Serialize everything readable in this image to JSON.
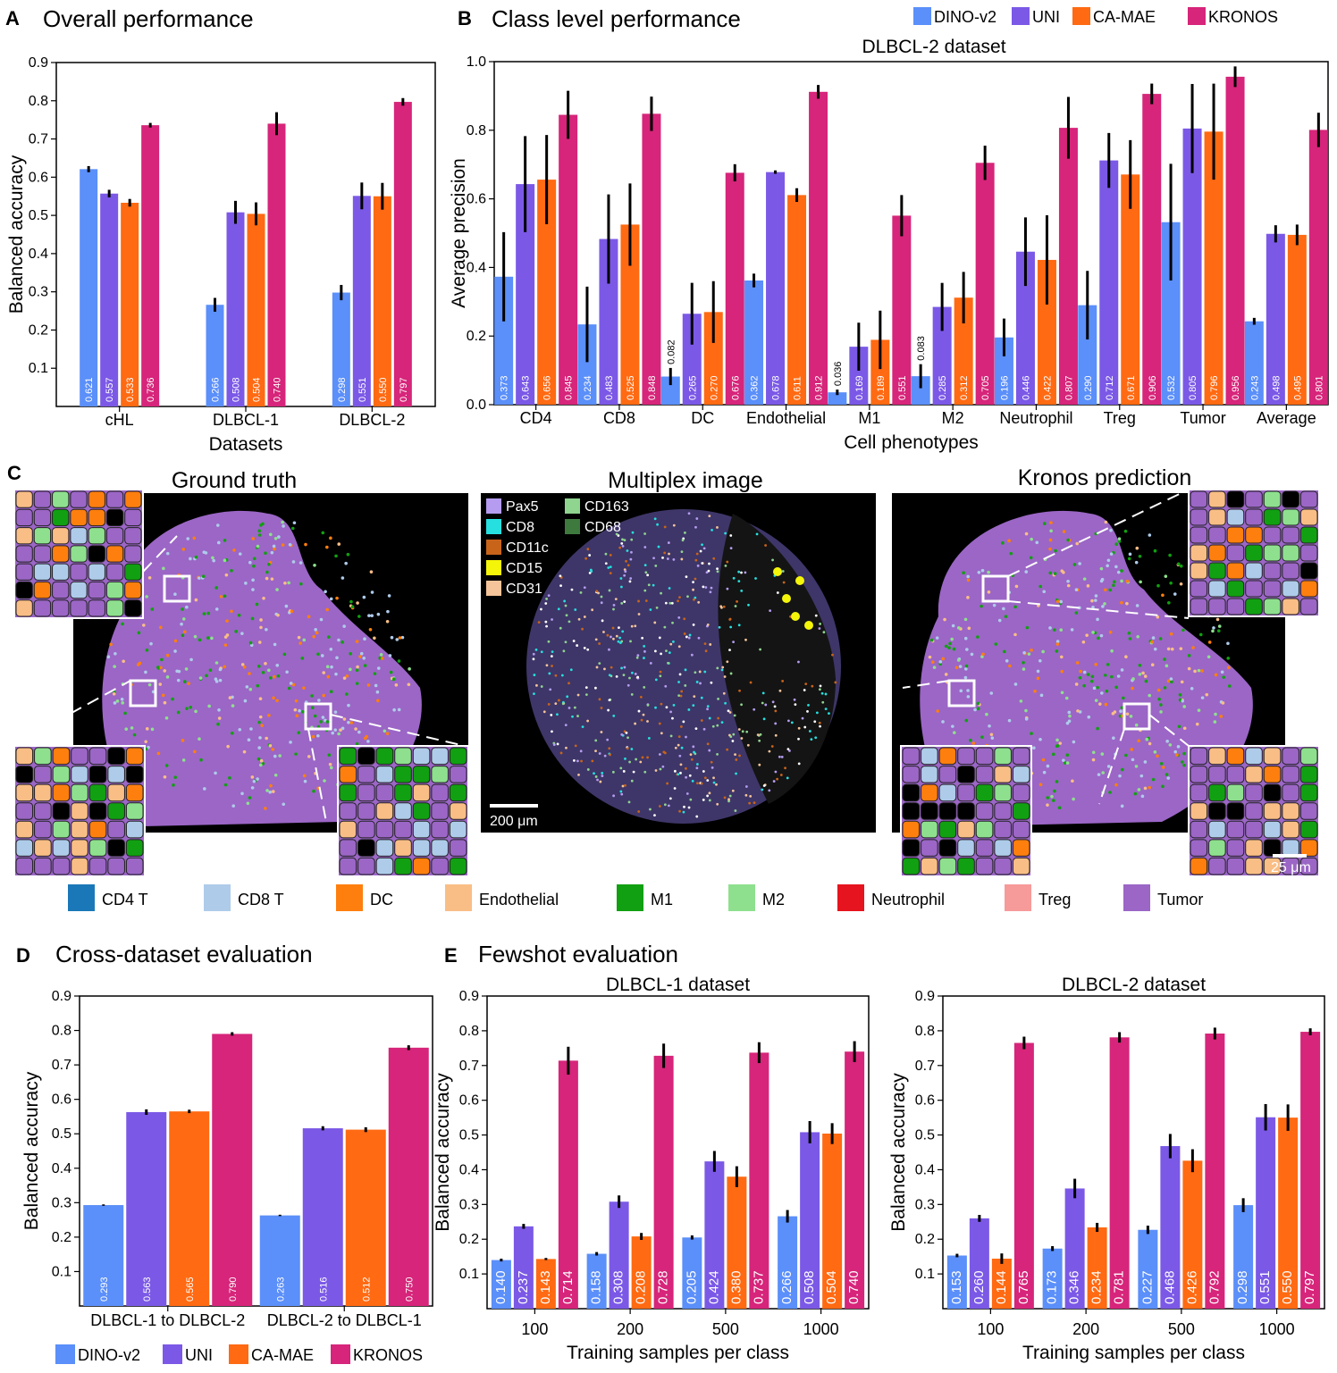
{
  "colors": {
    "DINO-v2": "#5b8ff9",
    "UNI": "#7b59e6",
    "CA-MAE": "#ff6a12",
    "KRONOS": "#d6257a"
  },
  "legend": [
    "DINO-v2",
    "UNI",
    "CA-MAE",
    "KRONOS"
  ],
  "panels": {
    "A": {
      "label": "A",
      "title": "Overall performance"
    },
    "B": {
      "label": "B",
      "title": "Class level performance",
      "subtitle": "DLBCL-2 dataset"
    },
    "C": {
      "label": "C",
      "titles": [
        "Ground truth",
        "Multiplex image",
        "Kronos prediction"
      ],
      "marker_legend": [
        {
          "name": "Pax5",
          "color": "#b59cf0"
        },
        {
          "name": "CD8",
          "color": "#26e0e0"
        },
        {
          "name": "CD11c",
          "color": "#c8641a"
        },
        {
          "name": "CD15",
          "color": "#f5f50a"
        },
        {
          "name": "CD31",
          "color": "#f5c49a"
        },
        {
          "name": "CD163",
          "color": "#8fd48f"
        },
        {
          "name": "CD68",
          "color": "#3e7a3e"
        }
      ],
      "scale_main": "200 μm",
      "scale_inset": "25 μm",
      "class_legend": [
        {
          "name": "CD4 T",
          "color": "#1a78b8"
        },
        {
          "name": "CD8 T",
          "color": "#aecbea"
        },
        {
          "name": "DC",
          "color": "#ff7f0e"
        },
        {
          "name": "Endothelial",
          "color": "#f9be86"
        },
        {
          "name": "M1",
          "color": "#11a011"
        },
        {
          "name": "M2",
          "color": "#8ee08e"
        },
        {
          "name": "Neutrophil",
          "color": "#e6141e"
        },
        {
          "name": "Treg",
          "color": "#f79a9a"
        },
        {
          "name": "Tumor",
          "color": "#9b66c6"
        }
      ]
    },
    "D": {
      "label": "D",
      "title": "Cross-dataset evaluation"
    },
    "E": {
      "label": "E",
      "title": "Fewshot evaluation"
    }
  },
  "chart_data": [
    {
      "id": "A",
      "type": "bar",
      "title": "",
      "xlabel": "Datasets",
      "ylabel": "Balanced accuracy",
      "ylim": [
        0,
        0.9
      ],
      "yticks": [
        "0.1",
        "0.2",
        "0.3",
        "0.4",
        "0.5",
        "0.6",
        "0.7",
        "0.8",
        "0.9"
      ],
      "categories": [
        "cHL",
        "DLBCL-1",
        "DLBCL-2"
      ],
      "series": [
        {
          "name": "DINO-v2",
          "values": [
            0.621,
            0.266,
            0.298
          ],
          "err": [
            0.008,
            0.018,
            0.02
          ],
          "labels": [
            "0.621",
            "0.266",
            "0.298"
          ]
        },
        {
          "name": "UNI",
          "values": [
            0.557,
            0.508,
            0.551
          ],
          "err": [
            0.01,
            0.03,
            0.035
          ],
          "labels": [
            "0.557",
            "0.508",
            "0.551"
          ]
        },
        {
          "name": "CA-MAE",
          "values": [
            0.533,
            0.504,
            0.55
          ],
          "err": [
            0.01,
            0.03,
            0.035
          ],
          "labels": [
            "0.533",
            "0.504",
            "0.550"
          ]
        },
        {
          "name": "KRONOS",
          "values": [
            0.736,
            0.74,
            0.797
          ],
          "err": [
            0.006,
            0.03,
            0.01
          ],
          "labels": [
            "0.736",
            "0.740",
            "0.797"
          ]
        }
      ]
    },
    {
      "id": "B",
      "type": "bar",
      "title": "DLBCL-2 dataset",
      "xlabel": "Cell phenotypes",
      "ylabel": "Average precision",
      "ylim": [
        0,
        1.0
      ],
      "yticks": [
        "0.0",
        "0.2",
        "0.4",
        "0.6",
        "0.8",
        "1.0"
      ],
      "categories": [
        "CD4",
        "CD8",
        "DC",
        "Endothelial",
        "M1",
        "M2",
        "Neutrophil",
        "Treg",
        "Tumor",
        "Average"
      ],
      "series": [
        {
          "name": "DINO-v2",
          "values": [
            0.373,
            0.234,
            0.082,
            0.362,
            0.036,
            0.083,
            0.196,
            0.29,
            0.532,
            0.243
          ],
          "err": [
            0.13,
            0.11,
            0.025,
            0.02,
            0.008,
            0.035,
            0.055,
            0.1,
            0.17,
            0.01
          ],
          "labels": [
            "0.373",
            "0.234",
            "0.082",
            "0.362",
            "0.036",
            "0.083",
            "0.196",
            "0.290",
            "0.532",
            "0.243"
          ]
        },
        {
          "name": "UNI",
          "values": [
            0.643,
            0.483,
            0.265,
            0.678,
            0.169,
            0.285,
            0.446,
            0.712,
            0.805,
            0.498
          ],
          "err": [
            0.14,
            0.13,
            0.09,
            0.005,
            0.07,
            0.07,
            0.1,
            0.08,
            0.13,
            0.025
          ],
          "labels": [
            "0.643",
            "0.483",
            "0.265",
            "0.678",
            "0.169",
            "0.285",
            "0.446",
            "0.712",
            "0.805",
            "0.498"
          ]
        },
        {
          "name": "CA-MAE",
          "values": [
            0.656,
            0.525,
            0.27,
            0.611,
            0.189,
            0.312,
            0.422,
            0.671,
            0.796,
            0.495
          ],
          "err": [
            0.13,
            0.12,
            0.09,
            0.02,
            0.085,
            0.075,
            0.13,
            0.1,
            0.14,
            0.03
          ],
          "labels": [
            "0.656",
            "0.525",
            "0.270",
            "0.611",
            "0.189",
            "0.312",
            "0.422",
            "0.671",
            "0.796",
            "0.495"
          ]
        },
        {
          "name": "KRONOS",
          "values": [
            0.845,
            0.848,
            0.676,
            0.912,
            0.551,
            0.705,
            0.807,
            0.906,
            0.956,
            0.801
          ],
          "err": [
            0.07,
            0.05,
            0.025,
            0.02,
            0.06,
            0.05,
            0.09,
            0.03,
            0.03,
            0.05
          ],
          "labels": [
            "0.845",
            "0.848",
            "0.676",
            "0.912",
            "0.551",
            "0.705",
            "0.807",
            "0.906",
            "0.956",
            "0.801"
          ]
        }
      ]
    },
    {
      "id": "D",
      "type": "bar",
      "title": "",
      "xlabel": "",
      "ylabel": "Balanced accuracy",
      "ylim": [
        0,
        0.9
      ],
      "yticks": [
        "0.1",
        "0.2",
        "0.3",
        "0.4",
        "0.5",
        "0.6",
        "0.7",
        "0.8",
        "0.9"
      ],
      "categories": [
        "DLBCL-1 to DLBCL-2",
        "DLBCL-2 to DLBCL-1"
      ],
      "series": [
        {
          "name": "DINO-v2",
          "values": [
            0.293,
            0.263
          ],
          "err": [
            0.002,
            0.002
          ],
          "labels": [
            "0.293",
            "0.263"
          ]
        },
        {
          "name": "UNI",
          "values": [
            0.563,
            0.516
          ],
          "err": [
            0.008,
            0.006
          ],
          "labels": [
            "0.563",
            "0.516"
          ]
        },
        {
          "name": "CA-MAE",
          "values": [
            0.565,
            0.512
          ],
          "err": [
            0.005,
            0.007
          ],
          "labels": [
            "0.565",
            "0.512"
          ]
        },
        {
          "name": "KRONOS",
          "values": [
            0.79,
            0.75
          ],
          "err": [
            0.005,
            0.007
          ],
          "labels": [
            "0.790",
            "0.750"
          ]
        }
      ]
    },
    {
      "id": "E1",
      "type": "bar",
      "title": "DLBCL-1 dataset",
      "xlabel": "Training samples per class",
      "ylabel": "Balanced accuracy",
      "ylim": [
        0,
        0.9
      ],
      "yticks": [
        "0.1",
        "0.2",
        "0.3",
        "0.4",
        "0.5",
        "0.6",
        "0.7",
        "0.8",
        "0.9"
      ],
      "categories": [
        "100",
        "200",
        "500",
        "1000"
      ],
      "series": [
        {
          "name": "DINO-v2",
          "values": [
            0.14,
            0.158,
            0.205,
            0.266
          ],
          "err": [
            0.004,
            0.005,
            0.006,
            0.018
          ],
          "labels": [
            "0.140",
            "0.158",
            "0.205",
            "0.266"
          ]
        },
        {
          "name": "UNI",
          "values": [
            0.237,
            0.308,
            0.424,
            0.508
          ],
          "err": [
            0.007,
            0.018,
            0.03,
            0.032
          ],
          "labels": [
            "0.237",
            "0.308",
            "0.424",
            "0.508"
          ]
        },
        {
          "name": "CA-MAE",
          "values": [
            0.143,
            0.208,
            0.38,
            0.504
          ],
          "err": [
            0.003,
            0.01,
            0.03,
            0.03
          ],
          "labels": [
            "0.143",
            "0.208",
            "0.380",
            "0.504"
          ]
        },
        {
          "name": "KRONOS",
          "values": [
            0.714,
            0.728,
            0.737,
            0.74
          ],
          "err": [
            0.04,
            0.035,
            0.03,
            0.03
          ],
          "labels": [
            "0.714",
            "0.728",
            "0.737",
            "0.740"
          ]
        }
      ]
    },
    {
      "id": "E2",
      "type": "bar",
      "title": "DLBCL-2 dataset",
      "xlabel": "Training samples per class",
      "ylabel": "Balanced accuracy",
      "ylim": [
        0,
        0.9
      ],
      "yticks": [
        "0.1",
        "0.2",
        "0.3",
        "0.4",
        "0.5",
        "0.6",
        "0.7",
        "0.8",
        "0.9"
      ],
      "categories": [
        "100",
        "200",
        "500",
        "1000"
      ],
      "series": [
        {
          "name": "DINO-v2",
          "values": [
            0.153,
            0.173,
            0.227,
            0.298
          ],
          "err": [
            0.005,
            0.007,
            0.012,
            0.02
          ],
          "labels": [
            "0.153",
            "0.173",
            "0.227",
            "0.298"
          ]
        },
        {
          "name": "UNI",
          "values": [
            0.26,
            0.346,
            0.468,
            0.551
          ],
          "err": [
            0.01,
            0.028,
            0.035,
            0.038
          ],
          "labels": [
            "0.260",
            "0.346",
            "0.468",
            "0.551"
          ]
        },
        {
          "name": "CA-MAE",
          "values": [
            0.144,
            0.234,
            0.426,
            0.55
          ],
          "err": [
            0.015,
            0.013,
            0.033,
            0.038
          ],
          "labels": [
            "0.144",
            "0.234",
            "0.426",
            "0.550"
          ]
        },
        {
          "name": "KRONOS",
          "values": [
            0.765,
            0.781,
            0.792,
            0.797
          ],
          "err": [
            0.018,
            0.015,
            0.017,
            0.01
          ],
          "labels": [
            "0.765",
            "0.781",
            "0.792",
            "0.797"
          ]
        }
      ]
    }
  ]
}
